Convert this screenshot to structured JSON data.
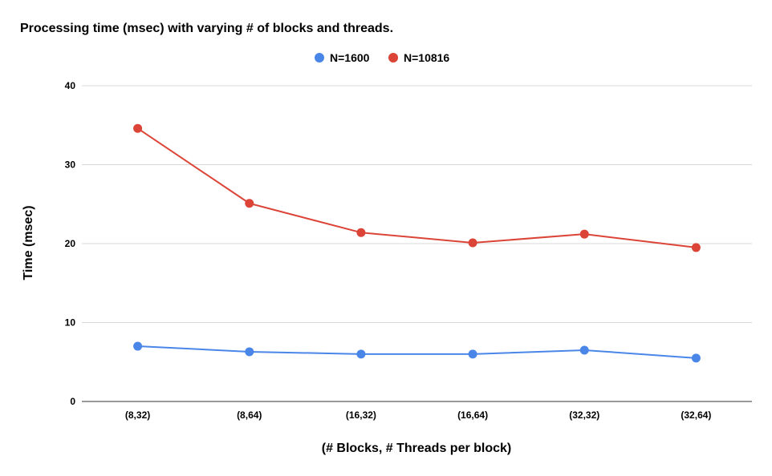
{
  "chart_data": {
    "type": "line",
    "title": "Processing time (msec) with varying # of blocks and threads.",
    "xlabel": "(# Blocks, # Threads per block)",
    "ylabel": "Time (msec)",
    "categories": [
      "(8,32)",
      "(8,64)",
      "(16,32)",
      "(16,64)",
      "(32,32)",
      "(32,64)"
    ],
    "ylim": [
      0,
      40
    ],
    "yticks": [
      "0",
      "10",
      "20",
      "30",
      "40"
    ],
    "grid": true,
    "legend_position": "top-center",
    "series": [
      {
        "name": "N=1600",
        "color": "#4a86e8",
        "values": [
          7.0,
          6.3,
          6.0,
          6.0,
          6.5,
          5.5
        ]
      },
      {
        "name": "N=10816",
        "color": "#db4437",
        "values": [
          34.6,
          25.1,
          21.4,
          20.1,
          21.2,
          19.5
        ]
      }
    ]
  }
}
